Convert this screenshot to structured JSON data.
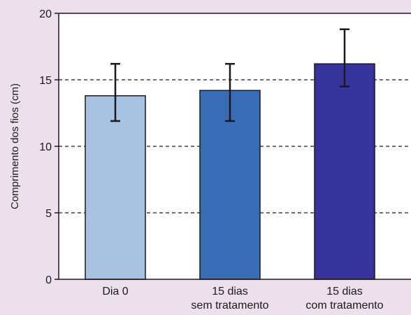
{
  "chart_data": {
    "type": "bar",
    "categories": [
      [
        "Dia 0"
      ],
      [
        "15 dias",
        "sem tratamento"
      ],
      [
        "15 dias",
        "com tratamento"
      ]
    ],
    "values": [
      13.8,
      14.2,
      16.2
    ],
    "error_low": [
      11.9,
      11.9,
      14.5
    ],
    "error_high": [
      16.2,
      16.2,
      18.8
    ],
    "bar_colors": [
      "#a8c2e2",
      "#3a6cb6",
      "#36349a"
    ],
    "xlabel": "",
    "ylabel": "Comprimento dos fios (cm)",
    "ylim": [
      0,
      20
    ],
    "yticks": [
      0,
      5,
      10,
      15,
      20
    ],
    "grid": {
      "lines_at": [
        5,
        10,
        15
      ],
      "style": "dashed"
    },
    "background": "#ece0ec",
    "plot_background": "#ffffff"
  }
}
